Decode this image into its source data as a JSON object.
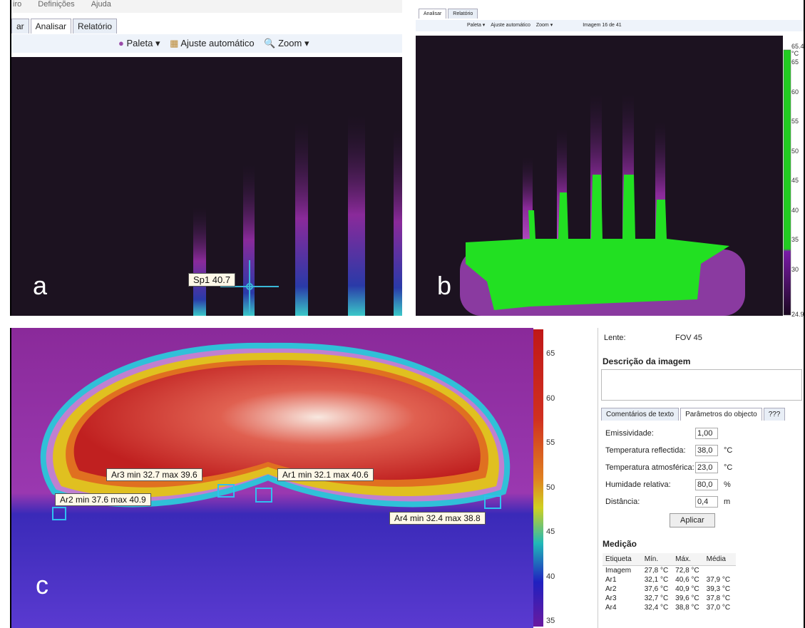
{
  "panel_a": {
    "label": "a",
    "menu": [
      "iro",
      "Definições",
      "Ajuda"
    ],
    "tabs": [
      "ar",
      "Analisar",
      "Relatório"
    ],
    "toolbar": [
      "Paleta",
      "Ajuste automático",
      "Zoom"
    ],
    "spot": "Sp1 40.7"
  },
  "panel_b": {
    "label": "b",
    "tabs": [
      "Analisar",
      "Relatório"
    ],
    "toolbar": [
      "Paleta",
      "Ajuste automático",
      "Zoom",
      "Imagem 16 de 41"
    ],
    "scale_ticks": [
      "65.4 °C",
      "65",
      "60",
      "55",
      "50",
      "45",
      "40",
      "35",
      "30",
      "24.9"
    ]
  },
  "panel_c": {
    "label": "c",
    "areas": [
      "Ar3 min 32.7 max 39.6",
      "Ar1 min 32.1 max 40.6",
      "Ar2 min 37.6 max 40.9",
      "Ar4 min 32.4 max 38.8"
    ],
    "scale_ticks": [
      "65",
      "60",
      "55",
      "50",
      "45",
      "40",
      "35"
    ]
  },
  "side": {
    "lens_label": "Lente:",
    "lens_value": "FOV 45",
    "description_title": "Descrição da imagem",
    "tabs": [
      "Comentários de texto",
      "Parâmetros do objecto",
      "???"
    ],
    "params": [
      [
        "Emissividade:",
        "1,00"
      ],
      [
        "Temperatura reflectida:",
        "38,0",
        "°C"
      ],
      [
        "Temperatura atmosférica:",
        "23,0",
        "°C"
      ],
      [
        "Humidade relativa:",
        "80,0",
        "%"
      ],
      [
        "Distância:",
        "0,4",
        "m"
      ]
    ],
    "apply": "Aplicar",
    "measure_title": "Medição",
    "header": [
      "Etiqueta",
      "Mín.",
      "Máx.",
      "Média"
    ],
    "rows": [
      [
        "Imagem",
        "27,8 °C",
        "72,8 °C"
      ],
      [
        "Ar1",
        "32,1 °C",
        "40,6 °C",
        "37,9 °C"
      ],
      [
        "Ar2",
        "37,6 °C",
        "40,9 °C",
        "39,3 °C"
      ],
      [
        "Ar3",
        "32,7 °C",
        "39,6 °C",
        "37,8 °C"
      ],
      [
        "Ar4",
        "32,4 °C",
        "38,8 °C",
        "37,0 °C"
      ]
    ]
  }
}
